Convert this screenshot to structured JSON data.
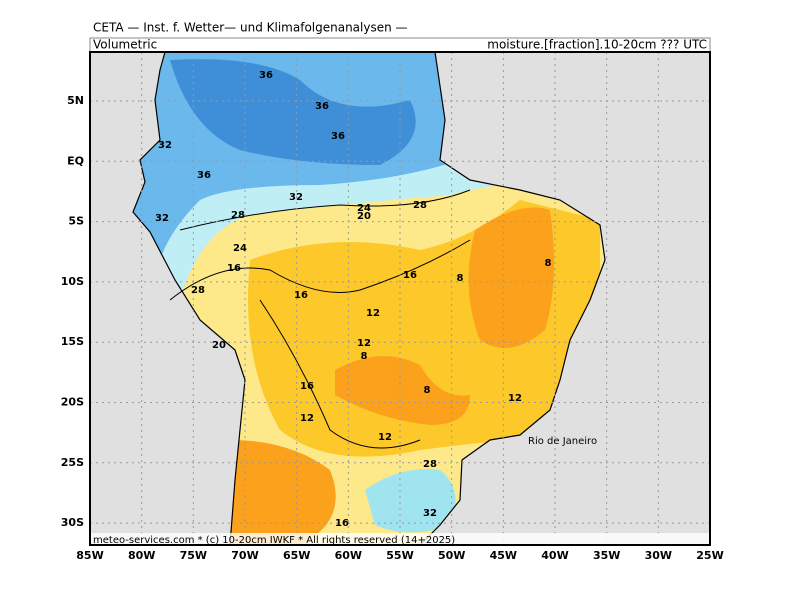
{
  "header": {
    "title": "CETA — Inst. f. Wetter— und Klimafolgenanalysen —",
    "left": "Volumetric",
    "right": "moisture.[fraction].10-20cm ??? UTC"
  },
  "footer": "meteo-services.com * (c) 10-20cm IWKF * All rights reserved (14+2025)",
  "place": "Rio de Janeiro",
  "lat_labels": [
    "5N",
    "EQ",
    "5S",
    "10S",
    "15S",
    "20S",
    "25S",
    "30S"
  ],
  "lon_labels": [
    "85W",
    "80W",
    "75W",
    "70W",
    "65W",
    "60W",
    "55W",
    "50W",
    "45W",
    "40W",
    "35W",
    "30W",
    "25W"
  ],
  "contour_labels": [
    "36",
    "36",
    "36",
    "32",
    "36",
    "32",
    "28",
    "24",
    "20",
    "32",
    "28",
    "24",
    "28",
    "20",
    "16",
    "16",
    "16",
    "12",
    "8",
    "8",
    "12",
    "16",
    "8",
    "12",
    "12",
    "12",
    "28",
    "32",
    "16",
    "8"
  ]
}
